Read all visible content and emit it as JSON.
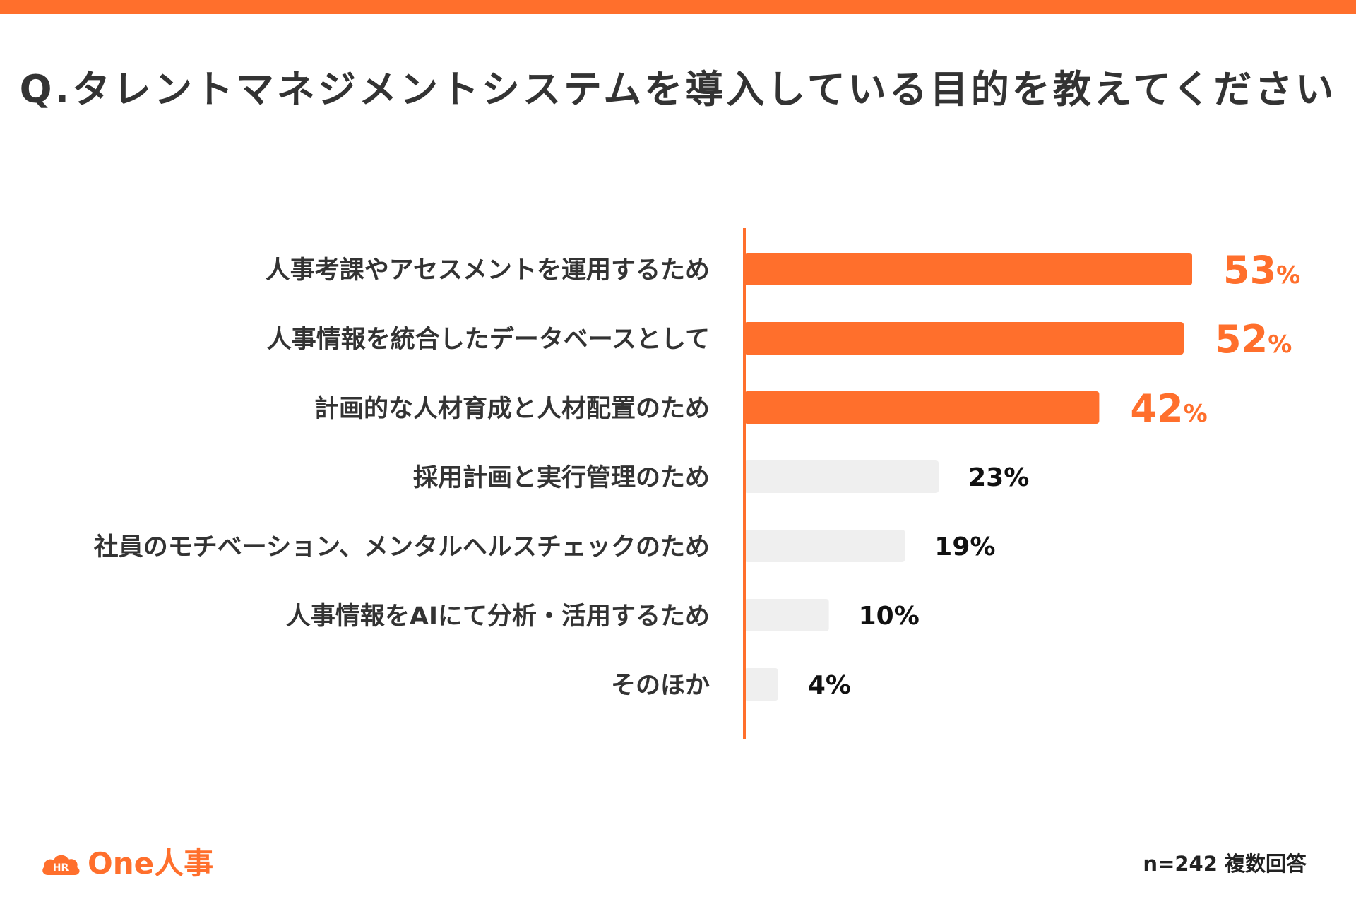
{
  "colors": {
    "accent": "#FF6F2C",
    "muted_bar": "#EFEFEF",
    "label_text": "#333333",
    "value_text": "#111111"
  },
  "title": "Q.タレントマネジメントシステムを導入している目的を教えてください",
  "footnote": "n=242 複数回答",
  "logo": {
    "icon": "cloud-hr-icon",
    "badge": "HR",
    "text": "One人事"
  },
  "chart_data": {
    "type": "bar",
    "orientation": "horizontal",
    "title": "Q.タレントマネジメントシステムを導入している目的を教えてください",
    "categories": [
      "人事考課やアセスメントを運用するため",
      "人事情報を統合したデータベースとして",
      "計画的な人材育成と人材配置のため",
      "採用計画と実行管理のため",
      "社員のモチベーション、メンタルヘルスチェックのため",
      "人事情報をAIにて分析・活用するため",
      "そのほか"
    ],
    "values": [
      53,
      52,
      42,
      23,
      19,
      10,
      4
    ],
    "value_suffix": "%",
    "highlighted": [
      true,
      true,
      true,
      false,
      false,
      false,
      false
    ],
    "xlim": [
      0,
      100
    ],
    "grid": false,
    "legend": "none"
  }
}
